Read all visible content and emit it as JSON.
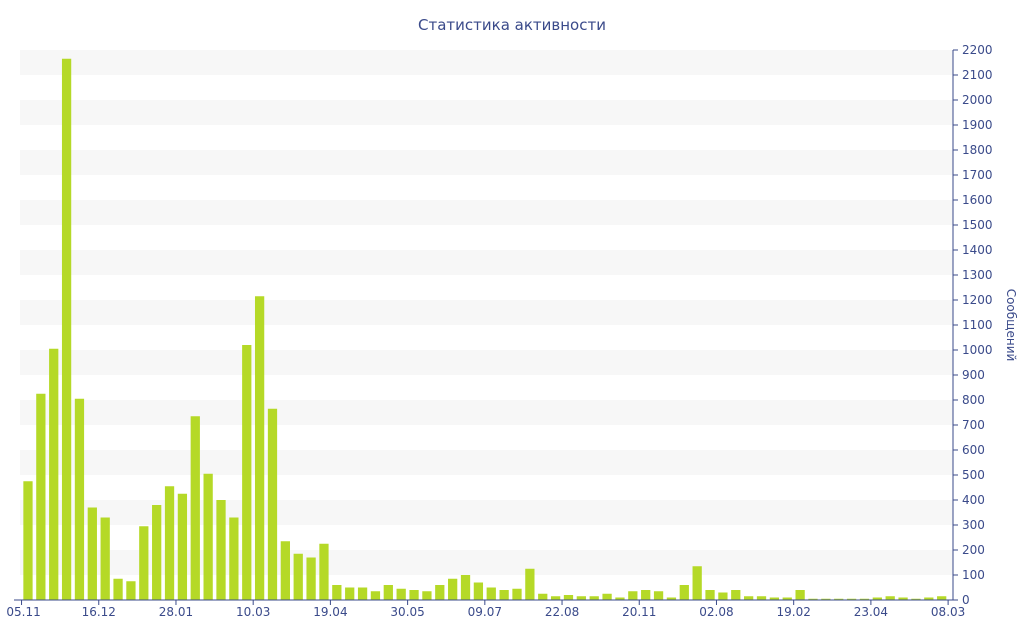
{
  "chart_data": {
    "type": "bar",
    "title": "Статистика активности",
    "ylabel": "Сообщений",
    "xlabel": "",
    "ylim": [
      0,
      2200
    ],
    "y_ticks": [
      0,
      100,
      200,
      300,
      400,
      500,
      600,
      700,
      800,
      900,
      1000,
      1100,
      1200,
      1300,
      1400,
      1500,
      1600,
      1700,
      1800,
      1900,
      2000,
      2100,
      2200
    ],
    "y_axis_side": "right",
    "grid": "alternating horizontal bands",
    "legend": "none",
    "x_tick_labels": [
      {
        "index": 0,
        "label": "05.11"
      },
      {
        "index": 6,
        "label": "16.12"
      },
      {
        "index": 12,
        "label": "28.01"
      },
      {
        "index": 18,
        "label": "10.03"
      },
      {
        "index": 24,
        "label": "19.04"
      },
      {
        "index": 30,
        "label": "30.05"
      },
      {
        "index": 36,
        "label": "09.07"
      },
      {
        "index": 42,
        "label": "22.08"
      },
      {
        "index": 48,
        "label": "20.11"
      },
      {
        "index": 54,
        "label": "02.08"
      },
      {
        "index": 60,
        "label": "19.02"
      },
      {
        "index": 66,
        "label": "23.04"
      },
      {
        "index": 72,
        "label": "08.03"
      }
    ],
    "values": [
      475,
      825,
      1005,
      2165,
      805,
      370,
      330,
      85,
      75,
      295,
      380,
      455,
      425,
      735,
      505,
      400,
      330,
      1020,
      1215,
      765,
      235,
      185,
      170,
      225,
      60,
      50,
      50,
      35,
      60,
      45,
      40,
      35,
      60,
      85,
      100,
      70,
      50,
      40,
      45,
      125,
      25,
      15,
      20,
      15,
      15,
      25,
      10,
      35,
      40,
      35,
      10,
      60,
      135,
      40,
      30,
      40,
      15,
      15,
      10,
      10,
      40,
      5,
      5,
      5,
      5,
      5,
      10,
      15,
      10,
      5,
      10,
      15
    ],
    "colors": {
      "bar": "#b5d927",
      "axis_text": "#3a4a8a",
      "band": "#f7f7f7",
      "axis_line": "#3a4a8a"
    }
  }
}
